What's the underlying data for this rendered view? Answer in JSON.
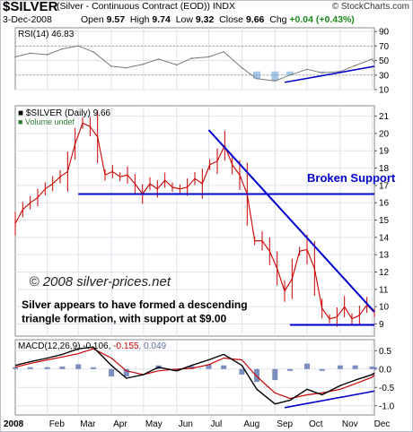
{
  "header": {
    "symbol": "$SILVER",
    "description": "(Silver - Continuous Contract (EOD))",
    "exchange": "INDX",
    "watermark": "© StockCharts.com",
    "date": "3-Dec-2008",
    "open_label": "Open",
    "open": "9.57",
    "high_label": "High",
    "high": "9.74",
    "low_label": "Low",
    "low": "9.32",
    "close_label": "Close",
    "close": "9.66",
    "chg_label": "Chg",
    "chg": "+0.04 (+0.43%)"
  },
  "colors": {
    "price": "#cc0000",
    "trendline": "#0000cc",
    "rsi_line": "#7a7a7a",
    "rsi_fill": "#5b9bd5",
    "macd_line": "#000000",
    "signal_line": "#cc0000",
    "histogram": "#7a8fbf",
    "panel_bg": "#ffffff",
    "grid": "#dde2ea"
  },
  "chart_data": [
    {
      "type": "line",
      "panel": "rsi",
      "label": "RSI(14)",
      "value_text": "46.83",
      "ylim": [
        10,
        95
      ],
      "y_ticks": [
        90,
        70,
        50,
        30,
        10
      ],
      "reference_lines": [
        70,
        30
      ],
      "x": [
        "2008-01-02",
        "2008-01-16",
        "2008-02-01",
        "2008-02-15",
        "2008-03-01",
        "2008-03-15",
        "2008-04-01",
        "2008-04-15",
        "2008-05-01",
        "2008-05-15",
        "2008-06-01",
        "2008-06-15",
        "2008-07-01",
        "2008-07-15",
        "2008-08-01",
        "2008-08-15",
        "2008-09-01",
        "2008-09-15",
        "2008-10-01",
        "2008-10-15",
        "2008-11-01",
        "2008-11-15",
        "2008-12-01",
        "2008-12-03"
      ],
      "values": [
        55,
        60,
        58,
        66,
        70,
        62,
        42,
        40,
        45,
        52,
        44,
        53,
        55,
        62,
        40,
        25,
        22,
        30,
        38,
        33,
        35,
        43,
        52,
        47
      ],
      "trendline": {
        "x": [
          "2008-09-10",
          "2008-12-03"
        ],
        "y": [
          20,
          42
        ]
      }
    },
    {
      "type": "line",
      "panel": "price",
      "label": "$SILVER (Daily)",
      "value_text": "9.66",
      "legend_note": "Volume undef",
      "ylim": [
        8.3,
        21.6
      ],
      "y_ticks": [
        21,
        20,
        19,
        18,
        17,
        16,
        15,
        14,
        13,
        12,
        11,
        10,
        9
      ],
      "x": [
        "2008-01-02",
        "2008-01-09",
        "2008-01-16",
        "2008-01-23",
        "2008-01-30",
        "2008-02-06",
        "2008-02-13",
        "2008-02-20",
        "2008-02-27",
        "2008-03-05",
        "2008-03-12",
        "2008-03-19",
        "2008-03-26",
        "2008-04-02",
        "2008-04-09",
        "2008-04-16",
        "2008-04-23",
        "2008-04-30",
        "2008-05-07",
        "2008-05-14",
        "2008-05-21",
        "2008-05-28",
        "2008-06-04",
        "2008-06-11",
        "2008-06-18",
        "2008-06-25",
        "2008-07-02",
        "2008-07-09",
        "2008-07-16",
        "2008-07-23",
        "2008-07-30",
        "2008-08-06",
        "2008-08-13",
        "2008-08-20",
        "2008-08-27",
        "2008-09-03",
        "2008-09-10",
        "2008-09-17",
        "2008-09-24",
        "2008-10-01",
        "2008-10-08",
        "2008-10-15",
        "2008-10-22",
        "2008-10-29",
        "2008-11-05",
        "2008-11-12",
        "2008-11-19",
        "2008-11-26",
        "2008-12-03"
      ],
      "values": [
        14.8,
        15.6,
        16.0,
        16.3,
        16.8,
        17.1,
        17.5,
        17.8,
        19.4,
        20.6,
        20.4,
        19.8,
        17.6,
        17.8,
        17.5,
        17.6,
        17.1,
        16.5,
        17.1,
        16.8,
        17.3,
        16.9,
        16.8,
        16.9,
        17.4,
        17.1,
        18.2,
        18.4,
        19.3,
        18.2,
        17.6,
        16.5,
        13.8,
        13.8,
        13.2,
        12.2,
        10.9,
        11.6,
        13.2,
        13.3,
        12.2,
        9.9,
        9.3,
        9.4,
        10.0,
        9.3,
        9.5,
        10.1,
        9.66
      ],
      "trendlines": [
        {
          "name": "support",
          "x": [
            "2008-03-01",
            "2008-12-03"
          ],
          "y": [
            16.5,
            16.5
          ]
        },
        {
          "name": "resistance",
          "x": [
            "2008-07-01",
            "2008-12-03"
          ],
          "y": [
            20.2,
            9.7
          ]
        },
        {
          "name": "triangle_base",
          "x": [
            "2008-09-15",
            "2008-12-03"
          ],
          "y": [
            8.95,
            8.95
          ]
        }
      ],
      "annotations": [
        {
          "text": "Broken Support",
          "x": "2008-10-01",
          "y": 17.2
        },
        {
          "text": "© 2008 silver-prices.net",
          "x": "2008-01-15",
          "y": 11.2
        },
        {
          "text": "Silver appears to have formed a descending",
          "x": "2008-01-08",
          "y": 9.9
        },
        {
          "text": "triangle formation, with support at $9.00",
          "x": "2008-01-08",
          "y": 9.1
        }
      ]
    },
    {
      "type": "line",
      "panel": "macd",
      "label": "MACD(12,26,9)",
      "values_text": [
        "-0.106",
        "-0.155",
        "0.049"
      ],
      "ylim": [
        -1.25,
        0.8
      ],
      "y_ticks": [
        0.5,
        0.0,
        -0.5,
        -1.0
      ],
      "x": [
        "2008-01-02",
        "2008-01-16",
        "2008-02-01",
        "2008-02-15",
        "2008-03-01",
        "2008-03-15",
        "2008-04-01",
        "2008-04-15",
        "2008-05-01",
        "2008-05-15",
        "2008-06-01",
        "2008-06-15",
        "2008-07-01",
        "2008-07-15",
        "2008-08-01",
        "2008-08-15",
        "2008-09-01",
        "2008-09-15",
        "2008-10-01",
        "2008-10-15",
        "2008-11-01",
        "2008-11-15",
        "2008-12-01",
        "2008-12-03"
      ],
      "series": [
        {
          "name": "MACD",
          "values": [
            0.1,
            0.2,
            0.3,
            0.4,
            0.55,
            0.6,
            0.1,
            -0.25,
            -0.15,
            0.05,
            -0.05,
            0.1,
            0.25,
            0.4,
            0.1,
            -0.55,
            -0.95,
            -0.85,
            -0.55,
            -0.7,
            -0.45,
            -0.3,
            -0.15,
            -0.106
          ]
        },
        {
          "name": "Signal",
          "values": [
            0.05,
            0.15,
            0.25,
            0.33,
            0.42,
            0.55,
            0.3,
            -0.05,
            -0.15,
            -0.05,
            0.0,
            0.02,
            0.12,
            0.3,
            0.25,
            -0.2,
            -0.65,
            -0.8,
            -0.7,
            -0.65,
            -0.55,
            -0.4,
            -0.22,
            -0.155
          ]
        },
        {
          "name": "Histogram",
          "values": [
            0.05,
            0.05,
            0.05,
            0.07,
            0.13,
            0.05,
            -0.2,
            -0.2,
            0.0,
            0.1,
            -0.05,
            0.08,
            0.13,
            0.1,
            -0.15,
            -0.35,
            -0.3,
            -0.05,
            0.15,
            -0.05,
            0.1,
            0.1,
            0.07,
            0.049
          ]
        }
      ],
      "trendline": {
        "x": [
          "2008-09-10",
          "2008-12-03"
        ],
        "y": [
          -1.05,
          -0.6
        ]
      }
    }
  ],
  "x_axis": {
    "year_label": "2008",
    "months": [
      {
        "label": "Feb",
        "date": "2008-02-01"
      },
      {
        "label": "Mar",
        "date": "2008-03-01"
      },
      {
        "label": "Apr",
        "date": "2008-04-01"
      },
      {
        "label": "May",
        "date": "2008-05-01"
      },
      {
        "label": "Jun",
        "date": "2008-06-01"
      },
      {
        "label": "Jul",
        "date": "2008-07-01"
      },
      {
        "label": "Aug",
        "date": "2008-08-01"
      },
      {
        "label": "Sep",
        "date": "2008-09-01"
      },
      {
        "label": "Oct",
        "date": "2008-10-01"
      },
      {
        "label": "Nov",
        "date": "2008-11-01"
      },
      {
        "label": "Dec",
        "date": "2008-12-01"
      }
    ],
    "start_date": "2008-01-02",
    "end_date": "2008-12-03"
  }
}
